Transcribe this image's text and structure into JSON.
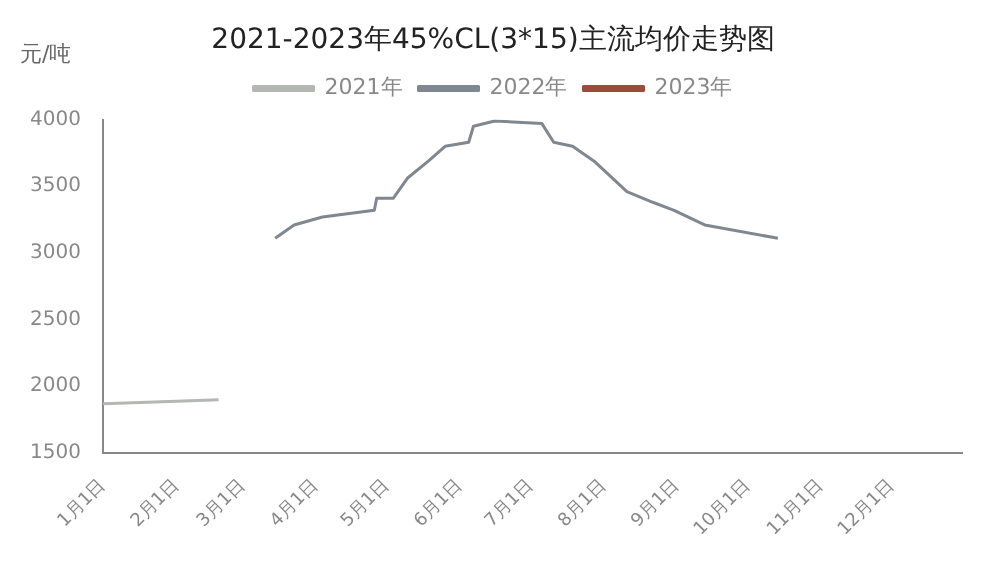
{
  "chart_data": {
    "type": "line",
    "title": "2021-2023年45%CL(3*15)主流均价走势图",
    "ylabel": "元/吨",
    "legend": "top",
    "grid": false,
    "marker": "none",
    "line_style": "solid",
    "xlim": [
      "--01-01",
      "--12-31"
    ],
    "xticks": [
      {
        "value": "--01-01",
        "label": "1月1日"
      },
      {
        "value": "--02-01",
        "label": "2月1日"
      },
      {
        "value": "--03-01",
        "label": "3月1日"
      },
      {
        "value": "--04-01",
        "label": "4月1日"
      },
      {
        "value": "--05-01",
        "label": "5月1日"
      },
      {
        "value": "--06-01",
        "label": "6月1日"
      },
      {
        "value": "--07-01",
        "label": "7月1日"
      },
      {
        "value": "--08-01",
        "label": "8月1日"
      },
      {
        "value": "--09-01",
        "label": "9月1日"
      },
      {
        "value": "--10-01",
        "label": "10月1日"
      },
      {
        "value": "--11-01",
        "label": "11月1日"
      },
      {
        "value": "--12-01",
        "label": "12月1日"
      }
    ],
    "ylim": [
      1500,
      4000
    ],
    "yticks": [
      1500,
      2000,
      2500,
      3000,
      3500,
      4000
    ],
    "series": [
      {
        "name": "2021年",
        "color": "#b4b8b4",
        "x": [
          "--01-01",
          "--01-20",
          "--02-19"
        ],
        "values": [
          1870,
          1880,
          1900
        ]
      },
      {
        "name": "2022年",
        "color": "#7f8890",
        "x": [
          "--03-15",
          "--03-23",
          "--04-04",
          "--04-26",
          "--04-27",
          "--05-04",
          "--05-10",
          "--05-19",
          "--05-26",
          "--06-05",
          "--06-07",
          "--06-16",
          "--07-06",
          "--07-11",
          "--07-19",
          "--07-28",
          "--08-05",
          "--08-11",
          "--08-22",
          "--08-31",
          "--09-13",
          "--10-14"
        ],
        "values": [
          3110,
          3210,
          3270,
          3320,
          3410,
          3410,
          3560,
          3690,
          3800,
          3830,
          3950,
          3990,
          3970,
          3830,
          3800,
          3690,
          3560,
          3460,
          3380,
          3320,
          3210,
          3110
        ]
      },
      {
        "name": "2023年",
        "color": "#9b4a3c"
      }
    ]
  }
}
